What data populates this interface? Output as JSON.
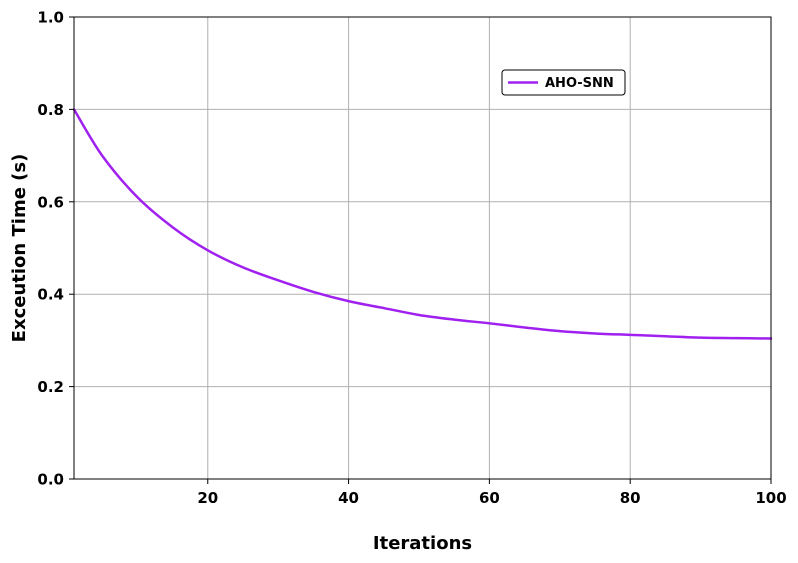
{
  "chart_data": {
    "type": "line",
    "title": "",
    "xlabel": "Iterations",
    "ylabel": "Exceution Time (s)",
    "xlim": [
      1,
      100
    ],
    "ylim": [
      0,
      1
    ],
    "x_ticks": [
      20,
      40,
      60,
      80,
      100
    ],
    "x_tick_labels": [
      "20",
      "40",
      "60",
      "80",
      "100"
    ],
    "y_ticks": [
      0,
      0.2,
      0.4,
      0.6,
      0.8,
      1.0
    ],
    "y_tick_labels": [
      "0.0",
      "0.2",
      "0.4",
      "0.6",
      "0.8",
      "1.0"
    ],
    "grid": true,
    "legend_position": "top-right",
    "series": [
      {
        "name": "AHO-SNN",
        "color": "#a020f0",
        "x": [
          1,
          5,
          10,
          15,
          20,
          25,
          30,
          35,
          40,
          45,
          50,
          55,
          60,
          65,
          70,
          75,
          80,
          85,
          90,
          95,
          100
        ],
        "y": [
          0.8,
          0.7,
          0.61,
          0.545,
          0.495,
          0.458,
          0.43,
          0.405,
          0.385,
          0.37,
          0.355,
          0.345,
          0.337,
          0.328,
          0.32,
          0.315,
          0.312,
          0.309,
          0.306,
          0.305,
          0.304
        ]
      }
    ]
  },
  "colors": {
    "grid": "#b0b0b0",
    "axes": "#000000",
    "background": "#ffffff"
  }
}
